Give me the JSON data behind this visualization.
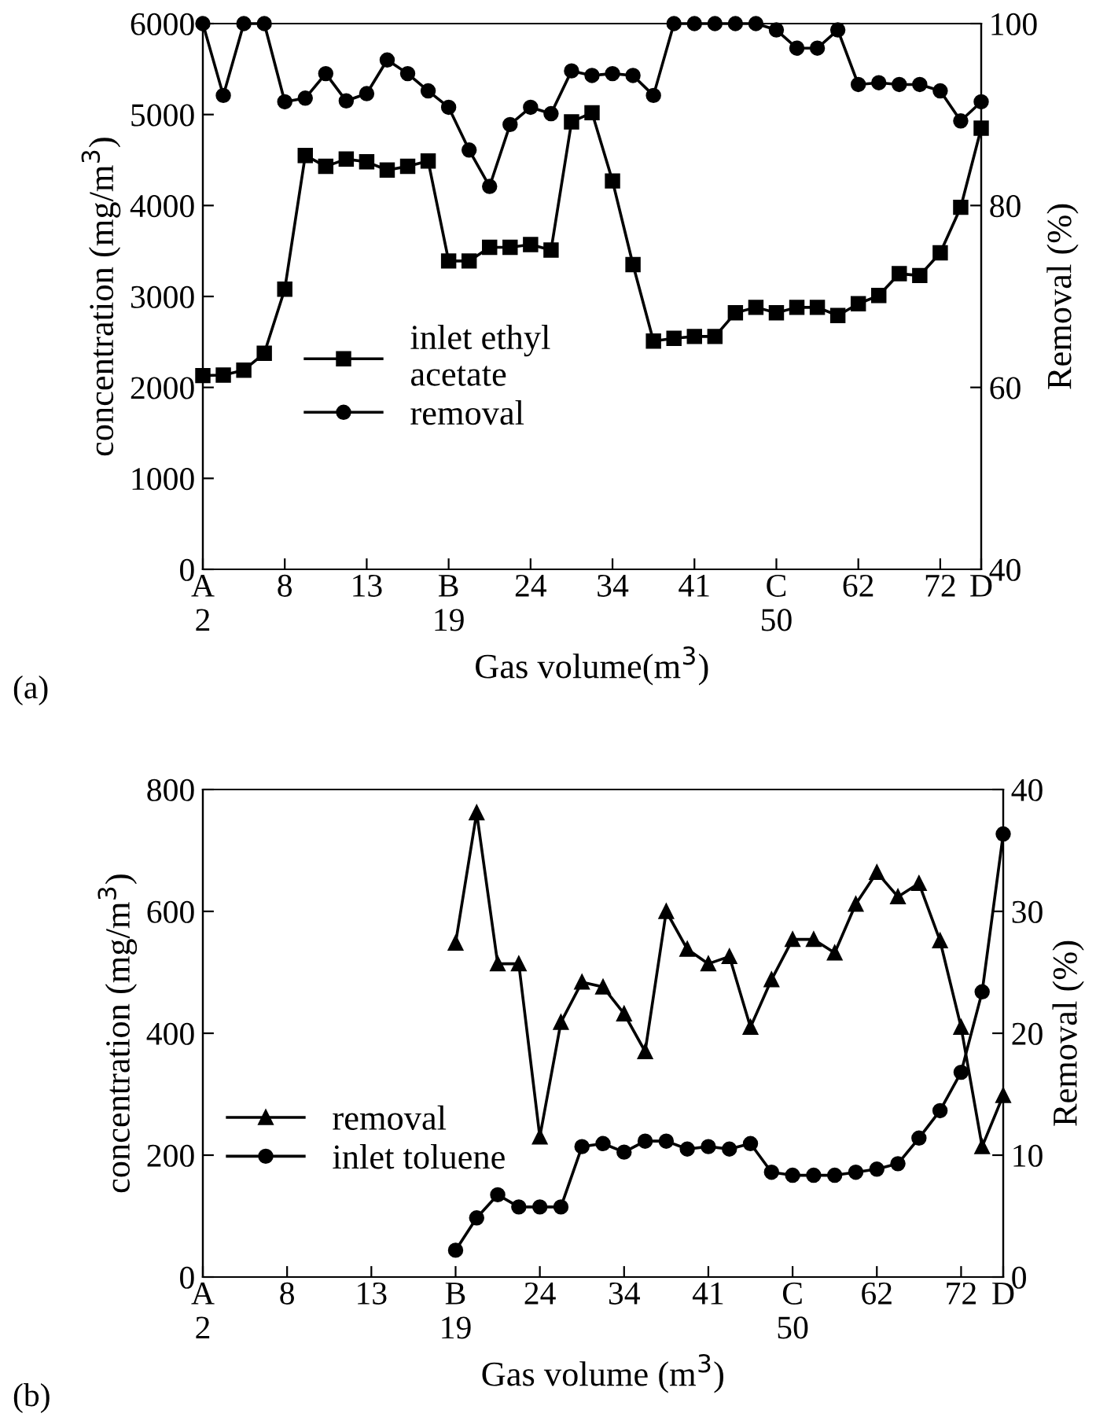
{
  "chart_data": [
    {
      "type": "line",
      "xlabel": "Gas volume(m$^{3}$)",
      "ylabel": "concentration (mg/m$^{3}$)",
      "y2label": "Removal (%)",
      "annotations": [
        "(a)"
      ],
      "categories": [
        "A\n2",
        null,
        null,
        null,
        "8",
        null,
        null,
        null,
        "13",
        null,
        null,
        null,
        "B\n19",
        null,
        null,
        null,
        "24",
        null,
        null,
        null,
        "34",
        null,
        null,
        null,
        "41",
        null,
        null,
        null,
        "C\n50",
        null,
        null,
        null,
        "62",
        null,
        null,
        null,
        "72",
        null,
        "D"
      ],
      "ylim": [
        0,
        6000
      ],
      "yticks": [
        0,
        1000,
        2000,
        3000,
        4000,
        5000,
        6000
      ],
      "y2lim": [
        40,
        100
      ],
      "y2ticks": [
        40,
        60,
        80,
        100
      ],
      "legend": "center left",
      "grid": false,
      "series": [
        {
          "name": "inlet ethyl\nacetate",
          "color": "#000000",
          "marker": "square",
          "values": [
            2130,
            2135,
            2190,
            2375,
            3080,
            4550,
            4430,
            4510,
            4480,
            4390,
            4430,
            4490,
            3390,
            3390,
            3540,
            3540,
            3570,
            3510,
            4920,
            5020,
            4270,
            3350,
            2510,
            2540,
            2560,
            2560,
            2820,
            2880,
            2820,
            2880,
            2880,
            2790,
            2920,
            3010,
            3250,
            3230,
            3480,
            3980,
            4850
          ]
        },
        {
          "name": "removal",
          "color": "#000000",
          "marker": "circle",
          "axis": "y2",
          "values": [
            100,
            92.1,
            100,
            100,
            91.4,
            91.8,
            94.5,
            91.5,
            92.3,
            96.0,
            94.5,
            92.6,
            90.8,
            86.1,
            82.1,
            88.9,
            90.8,
            90.1,
            94.8,
            94.3,
            94.5,
            94.3,
            92.1,
            100,
            100,
            100,
            100,
            100,
            99.3,
            97.3,
            97.3,
            99.3,
            93.3,
            93.5,
            93.3,
            93.3,
            92.6,
            89.3,
            91.4
          ]
        }
      ]
    },
    {
      "type": "line",
      "xlabel": "Gas volume (m$^{3}$)",
      "ylabel": "concentration (mg/m$^{3}$)",
      "y2label": "Removal (%)",
      "annotations": [
        "(b)"
      ],
      "categories": [
        "A\n2",
        null,
        null,
        null,
        "8",
        null,
        null,
        null,
        "13",
        null,
        null,
        null,
        "B\n19",
        null,
        null,
        null,
        "24",
        null,
        null,
        null,
        "34",
        null,
        null,
        null,
        "41",
        null,
        null,
        null,
        "C\n50",
        null,
        null,
        null,
        "62",
        null,
        null,
        null,
        "72",
        null,
        "D"
      ],
      "ylim": [
        0,
        800
      ],
      "yticks": [
        0,
        200,
        400,
        600,
        800
      ],
      "y2lim": [
        0,
        40
      ],
      "y2ticks": [
        0,
        10,
        20,
        30,
        40
      ],
      "legend": "center left",
      "grid": false,
      "series": [
        {
          "name": "removal",
          "color": "#000000",
          "marker": "triangle",
          "axis": "y2",
          "values": [
            null,
            null,
            null,
            null,
            null,
            null,
            null,
            null,
            null,
            null,
            null,
            null,
            27.4,
            38.1,
            25.7,
            25.7,
            11.5,
            20.9,
            24.2,
            23.8,
            21.6,
            18.5,
            30.0,
            26.9,
            25.7,
            26.3,
            20.5,
            24.4,
            27.7,
            27.7,
            26.6,
            30.6,
            33.2,
            31.2,
            32.3,
            27.6,
            20.5,
            10.7,
            14.9
          ]
        },
        {
          "name": "inlet toluene",
          "color": "#000000",
          "marker": "circle",
          "values": [
            null,
            null,
            null,
            null,
            null,
            null,
            null,
            null,
            null,
            null,
            null,
            null,
            44,
            97,
            135,
            115,
            115,
            115,
            214,
            219,
            205,
            223,
            223,
            210,
            214,
            210,
            219,
            172,
            167,
            167,
            167,
            172,
            177,
            186,
            228,
            273,
            336,
            468,
            727
          ]
        }
      ]
    }
  ]
}
